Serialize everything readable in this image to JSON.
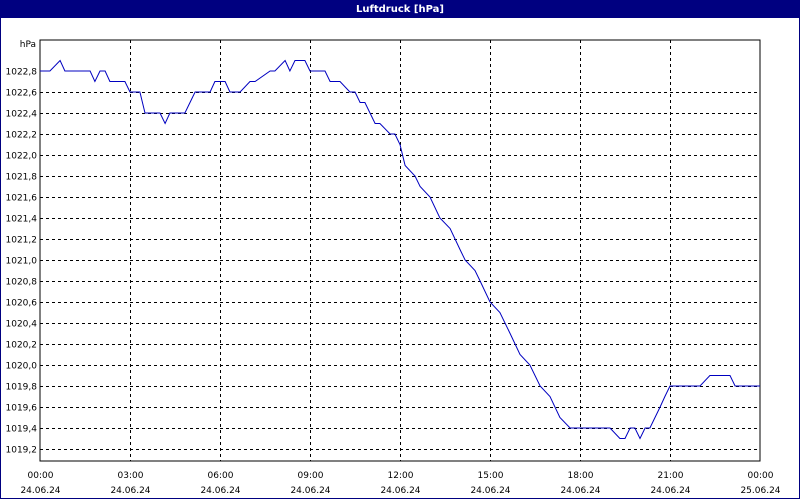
{
  "window": {
    "title": "Luftdruck [hPa]"
  },
  "chart_data": {
    "type": "line",
    "title": "Luftdruck [hPa]",
    "ylabel": "hPa",
    "xlabel": "",
    "ylim": [
      1019.3,
      1022.8
    ],
    "xlim": [
      0,
      24
    ],
    "grid": true,
    "y_ticks": [
      1022.8,
      1022.6,
      1022.4,
      1022.2,
      1022.0,
      1021.8,
      1021.6,
      1021.4,
      1021.2,
      1021.0,
      1020.8,
      1020.6,
      1020.4,
      1020.2,
      1020.0,
      1019.8,
      1019.6,
      1019.4,
      1019.2
    ],
    "y_tick_labels": [
      "1022,8",
      "1022,6",
      "1022,4",
      "1022,2",
      "1022,0",
      "1021,8",
      "1021,6",
      "1021,4",
      "1021,2",
      "1021,0",
      "1020,8",
      "1020,6",
      "1020,4",
      "1020,2",
      "1020,0",
      "1019,8",
      "1019,6",
      "1019,4",
      "1019,2"
    ],
    "x_ticks": [
      {
        "hour": 0,
        "time": "00:00",
        "date": "24.06.24"
      },
      {
        "hour": 3,
        "time": "03:00",
        "date": "24.06.24"
      },
      {
        "hour": 6,
        "time": "06:00",
        "date": "24.06.24"
      },
      {
        "hour": 9,
        "time": "09:00",
        "date": "24.06.24"
      },
      {
        "hour": 12,
        "time": "12:00",
        "date": "24.06.24"
      },
      {
        "hour": 15,
        "time": "15:00",
        "date": "24.06.24"
      },
      {
        "hour": 18,
        "time": "18:00",
        "date": "24.06.24"
      },
      {
        "hour": 21,
        "time": "21:00",
        "date": "24.06.24"
      },
      {
        "hour": 24,
        "time": "00:00",
        "date": "25.06.24"
      }
    ],
    "series": [
      {
        "color": "#0000c0",
        "x": [
          0.0,
          0.33,
          0.67,
          0.83,
          1.67,
          1.83,
          2.0,
          2.17,
          2.33,
          2.83,
          3.0,
          3.33,
          3.5,
          4.0,
          4.17,
          4.33,
          4.83,
          5.0,
          5.17,
          5.67,
          5.83,
          6.17,
          6.33,
          6.67,
          7.0,
          7.17,
          7.67,
          7.83,
          8.17,
          8.33,
          8.5,
          8.83,
          9.0,
          9.5,
          9.67,
          10.0,
          10.33,
          10.5,
          10.67,
          10.83,
          11.0,
          11.17,
          11.33,
          11.67,
          11.83,
          12.0,
          12.17,
          12.5,
          12.67,
          13.0,
          13.33,
          13.67,
          14.0,
          14.17,
          14.5,
          14.67,
          15.0,
          15.33,
          15.67,
          16.0,
          16.33,
          16.67,
          17.0,
          17.33,
          17.67,
          18.0,
          19.0,
          19.33,
          19.5,
          19.67,
          19.83,
          20.0,
          20.17,
          20.33,
          20.67,
          20.83,
          21.0,
          21.17,
          22.0,
          22.33,
          22.5,
          23.0,
          23.17,
          24.0
        ],
        "y": [
          1022.8,
          1022.8,
          1022.9,
          1022.8,
          1022.8,
          1022.7,
          1022.8,
          1022.8,
          1022.7,
          1022.7,
          1022.6,
          1022.6,
          1022.4,
          1022.4,
          1022.3,
          1022.4,
          1022.4,
          1022.5,
          1022.6,
          1022.6,
          1022.7,
          1022.7,
          1022.6,
          1022.6,
          1022.7,
          1022.7,
          1022.8,
          1022.8,
          1022.9,
          1022.8,
          1022.9,
          1022.9,
          1022.8,
          1022.8,
          1022.7,
          1022.7,
          1022.6,
          1022.6,
          1022.5,
          1022.5,
          1022.4,
          1022.3,
          1022.3,
          1022.2,
          1022.2,
          1022.1,
          1021.9,
          1021.8,
          1021.7,
          1021.6,
          1021.4,
          1021.3,
          1021.1,
          1021.0,
          1020.9,
          1020.8,
          1020.6,
          1020.5,
          1020.3,
          1020.1,
          1020.0,
          1019.8,
          1019.7,
          1019.5,
          1019.4,
          1019.4,
          1019.4,
          1019.3,
          1019.3,
          1019.4,
          1019.4,
          1019.3,
          1019.4,
          1019.4,
          1019.6,
          1019.7,
          1019.8,
          1019.8,
          1019.8,
          1019.9,
          1019.9,
          1019.9,
          1019.8,
          1019.8
        ]
      }
    ]
  }
}
